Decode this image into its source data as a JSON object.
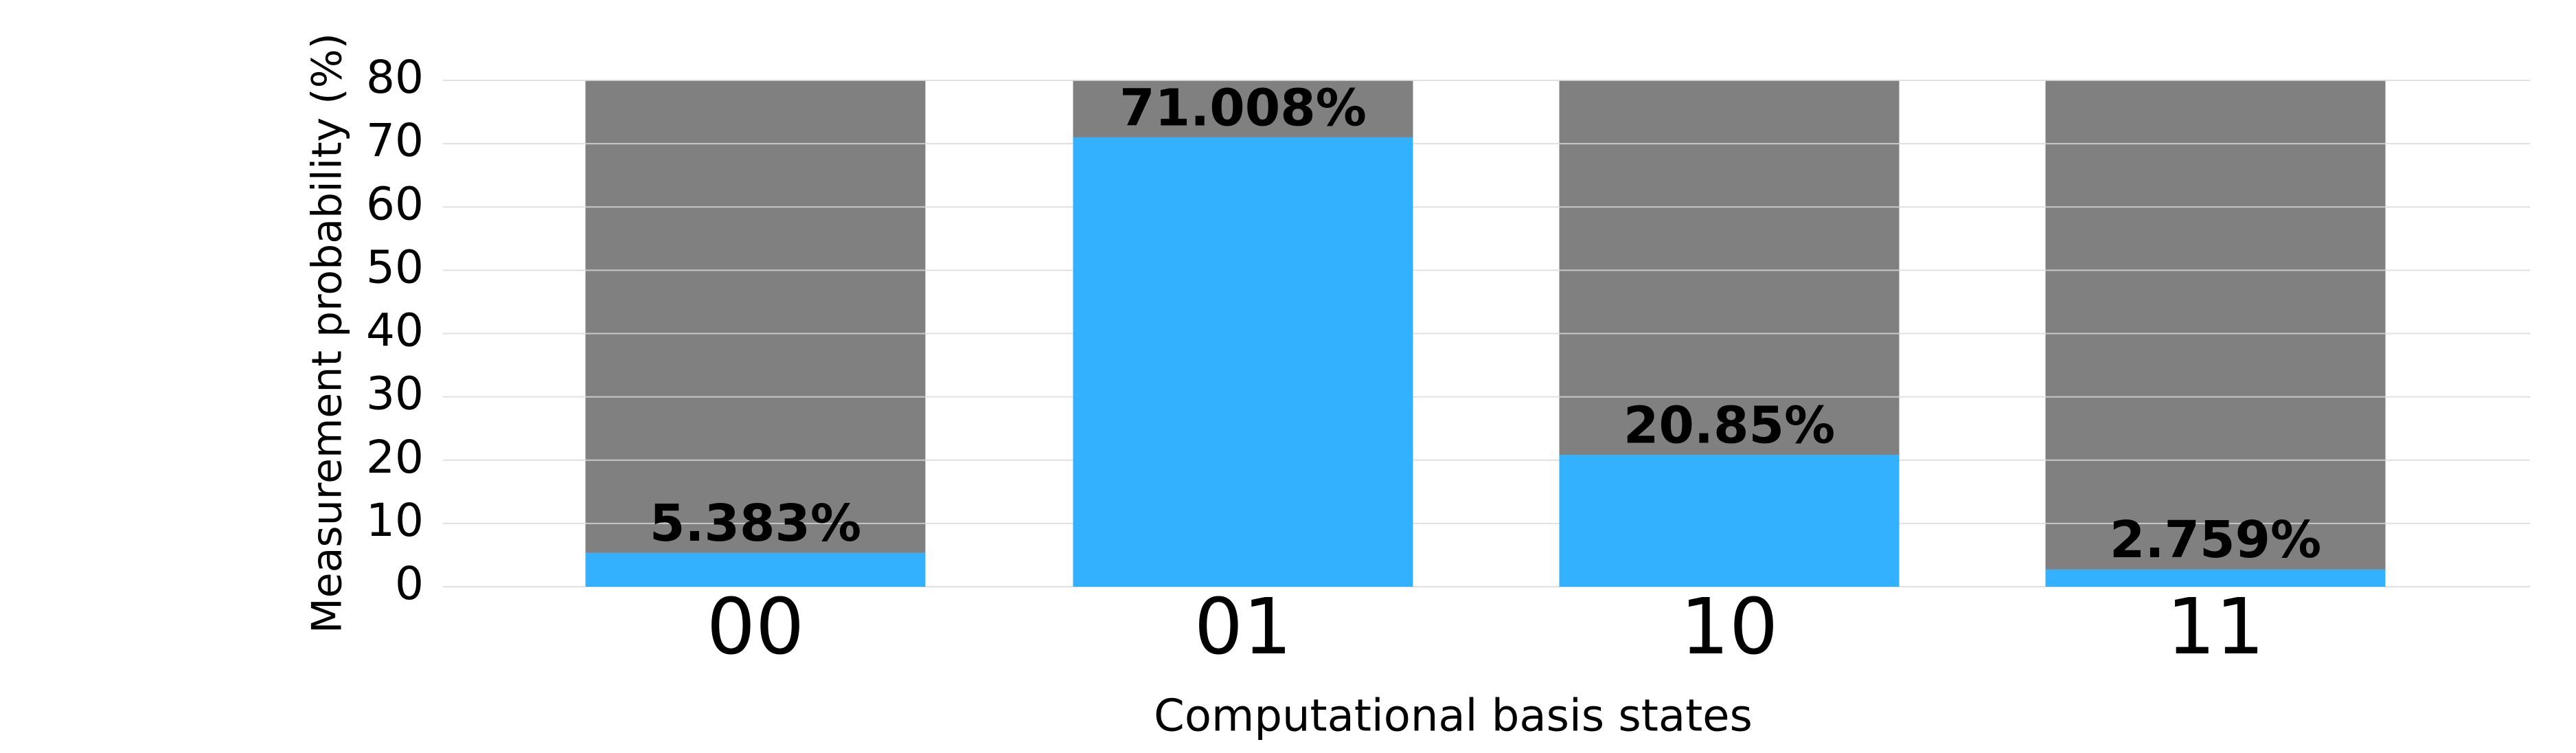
{
  "chart_data": {
    "type": "bar",
    "x_label": "Computational basis states",
    "y_label": "Measurement probability (%)",
    "categories": [
      "00",
      "01",
      "10",
      "11"
    ],
    "values": [
      5.383,
      71.008,
      20.85,
      2.759
    ],
    "value_labels": [
      "5.383%",
      "71.008%",
      "20.85%",
      "2.759%"
    ],
    "color": "#33b1ff",
    "ylim": [
      0,
      80
    ],
    "yticks": [
      0,
      10,
      20,
      30,
      40,
      50,
      60,
      70,
      80
    ],
    "grid": true
  }
}
